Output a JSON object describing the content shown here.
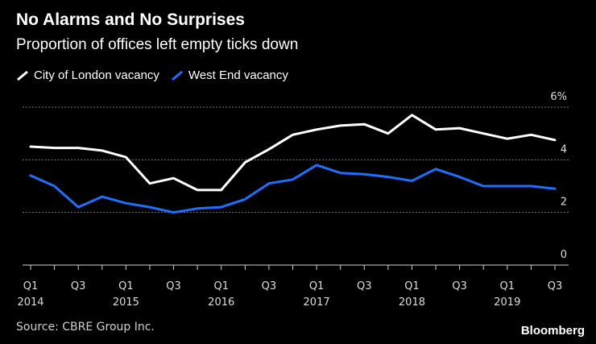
{
  "header": {
    "title": "No Alarms and No Surprises",
    "subtitle": "Proportion of offices left empty ticks down"
  },
  "footer": {
    "source": "Source: CBRE Group Inc.",
    "brand": "Bloomberg"
  },
  "chart_data": {
    "type": "line",
    "title": "No Alarms and No Surprises",
    "subtitle": "Proportion of offices left empty ticks down",
    "x": [
      "Q1 2014",
      "Q2 2014",
      "Q3 2014",
      "Q4 2014",
      "Q1 2015",
      "Q2 2015",
      "Q3 2015",
      "Q4 2015",
      "Q1 2016",
      "Q2 2016",
      "Q3 2016",
      "Q4 2016",
      "Q1 2017",
      "Q2 2017",
      "Q3 2017",
      "Q4 2017",
      "Q1 2018",
      "Q2 2018",
      "Q3 2018",
      "Q4 2018",
      "Q1 2019",
      "Q2 2019",
      "Q3 2019"
    ],
    "tick_labels": [
      {
        "index": 0,
        "quarter": "Q1",
        "year": "2014"
      },
      {
        "index": 2,
        "quarter": "Q3",
        "year": ""
      },
      {
        "index": 4,
        "quarter": "Q1",
        "year": "2015"
      },
      {
        "index": 6,
        "quarter": "Q3",
        "year": ""
      },
      {
        "index": 8,
        "quarter": "Q1",
        "year": "2016"
      },
      {
        "index": 10,
        "quarter": "Q3",
        "year": ""
      },
      {
        "index": 12,
        "quarter": "Q1",
        "year": "2017"
      },
      {
        "index": 14,
        "quarter": "Q3",
        "year": ""
      },
      {
        "index": 16,
        "quarter": "Q1",
        "year": "2018"
      },
      {
        "index": 18,
        "quarter": "Q3",
        "year": ""
      },
      {
        "index": 20,
        "quarter": "Q1",
        "year": "2019"
      },
      {
        "index": 22,
        "quarter": "Q3",
        "year": ""
      }
    ],
    "series": [
      {
        "name": "City of London vacancy",
        "color": "#ffffff",
        "values": [
          4.5,
          4.45,
          4.45,
          4.35,
          4.1,
          3.1,
          3.3,
          2.85,
          2.85,
          3.9,
          4.4,
          4.95,
          5.15,
          5.3,
          5.35,
          5.0,
          5.7,
          5.15,
          5.2,
          5.0,
          4.8,
          4.95,
          4.75
        ]
      },
      {
        "name": "West End vacancy",
        "color": "#1f6fff",
        "values": [
          3.4,
          3.0,
          2.2,
          2.6,
          2.35,
          2.2,
          2.0,
          2.15,
          2.2,
          2.5,
          3.1,
          3.25,
          3.8,
          3.5,
          3.45,
          3.35,
          3.2,
          3.65,
          3.35,
          3.0,
          3.0,
          3.0,
          2.9
        ]
      }
    ],
    "yticks": [
      0,
      2,
      4,
      6
    ],
    "ytick_labels": [
      "0",
      "2",
      "4",
      "6%"
    ],
    "ylim": [
      0,
      6
    ],
    "xlabel": "",
    "ylabel": "",
    "legend_position": "top-left",
    "grid": true
  }
}
